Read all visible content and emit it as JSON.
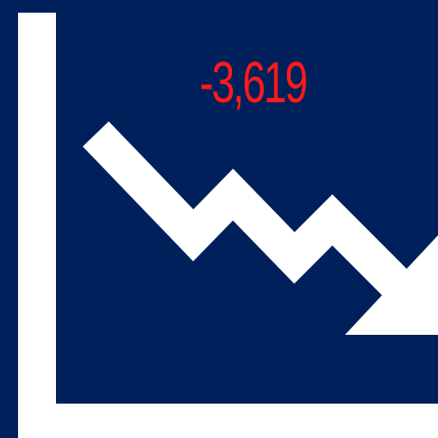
{
  "value_text": "-3,619",
  "icon": "decline-trend-arrow-icon",
  "colors": {
    "background": "#00205b",
    "foreground": "#ffffff",
    "value": "#ff1a1a"
  }
}
